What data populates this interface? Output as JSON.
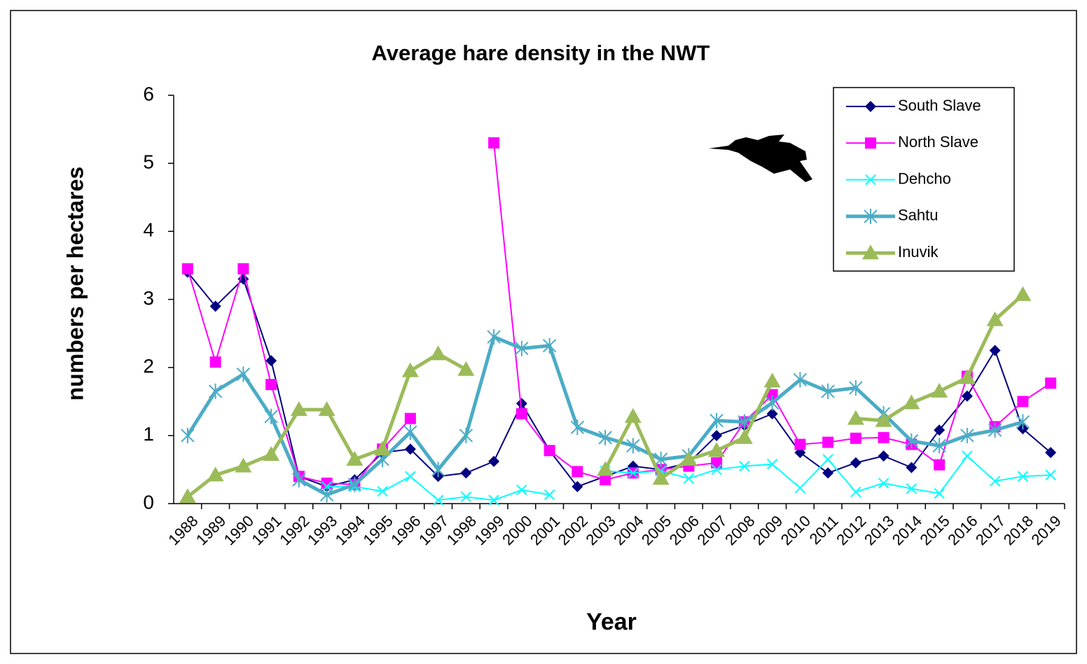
{
  "chart_data": {
    "type": "line",
    "title": "Average hare density in the NWT",
    "x_label": "Year",
    "y_label": "numbers per hectares",
    "categories": [
      "1988",
      "1989",
      "1990",
      "1991",
      "1992",
      "1993",
      "1994",
      "1995",
      "1996",
      "1997",
      "1998",
      "1999",
      "2000",
      "2001",
      "2002",
      "2003",
      "2004",
      "2005",
      "2006",
      "2007",
      "2008",
      "2009",
      "2010",
      "2011",
      "2012",
      "2013",
      "2014",
      "2015",
      "2016",
      "2017",
      "2018",
      "2019"
    ],
    "ylim": [
      0,
      6
    ],
    "yticks": [
      0,
      1,
      2,
      3,
      4,
      5,
      6
    ],
    "legend": "upper right",
    "series": [
      {
        "name": "South Slave",
        "color": "#000080",
        "marker": "diamond",
        "values": [
          3.4,
          2.9,
          3.3,
          2.1,
          0.4,
          0.25,
          0.35,
          0.75,
          0.8,
          0.4,
          0.45,
          0.62,
          1.47,
          0.78,
          0.25,
          0.4,
          0.55,
          0.5,
          0.6,
          1.0,
          1.15,
          1.32,
          0.75,
          0.45,
          0.6,
          0.7,
          0.53,
          1.08,
          1.58,
          2.25,
          1.1,
          0.75
        ]
      },
      {
        "name": "North Slave",
        "color": "#ff00ff",
        "marker": "square",
        "values": [
          3.45,
          2.08,
          3.45,
          1.75,
          0.4,
          0.3,
          0.28,
          0.8,
          1.25,
          null,
          null,
          5.3,
          1.32,
          0.78,
          0.47,
          0.35,
          0.45,
          0.5,
          0.55,
          0.6,
          1.2,
          1.6,
          0.87,
          0.9,
          0.96,
          0.97,
          0.87,
          0.57,
          1.87,
          1.13,
          1.5,
          1.77
        ]
      },
      {
        "name": "Dehcho",
        "color": "#00ffff",
        "marker": "x",
        "values": [
          null,
          null,
          null,
          null,
          null,
          0.25,
          0.25,
          0.18,
          0.4,
          0.05,
          0.1,
          0.05,
          0.2,
          0.13,
          null,
          0.48,
          0.45,
          0.48,
          0.37,
          0.5,
          0.55,
          0.58,
          0.23,
          0.65,
          0.17,
          0.3,
          0.22,
          0.15,
          0.7,
          0.33,
          0.4,
          0.42
        ]
      },
      {
        "name": "Sahtu",
        "color": "#4bacc6",
        "marker": "asterisk",
        "values": [
          1.0,
          1.65,
          1.9,
          1.28,
          0.35,
          0.13,
          0.28,
          0.65,
          1.05,
          0.5,
          1.0,
          2.45,
          2.28,
          2.32,
          1.12,
          0.97,
          0.85,
          0.65,
          0.7,
          1.22,
          1.2,
          1.48,
          1.82,
          1.65,
          1.7,
          1.32,
          0.92,
          0.85,
          1.0,
          1.08,
          1.2,
          null
        ]
      },
      {
        "name": "Inuvik",
        "color": "#9bbb59",
        "marker": "triangle",
        "values": [
          0.1,
          0.42,
          0.55,
          0.72,
          1.38,
          1.38,
          0.65,
          0.8,
          1.95,
          2.2,
          1.97,
          null,
          null,
          null,
          null,
          0.5,
          1.28,
          0.37,
          0.65,
          0.78,
          0.97,
          1.8,
          null,
          null,
          1.25,
          1.22,
          1.48,
          1.65,
          1.85,
          2.7,
          3.07,
          null
        ]
      }
    ]
  }
}
